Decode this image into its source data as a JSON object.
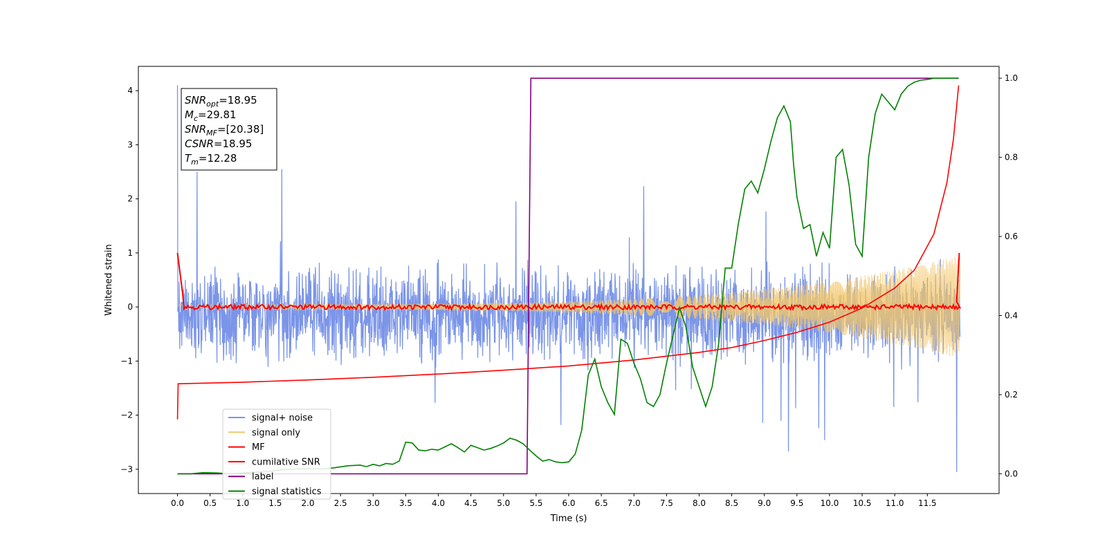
{
  "chart_data": {
    "type": "line",
    "xlabel": "Time (s)",
    "ylabel": "Whitened strain",
    "xlim": [
      -0.6,
      12.6
    ],
    "ylim": [
      -3.45,
      4.45
    ],
    "ylim_right": [
      -0.05,
      1.03
    ],
    "xticks": [
      0.0,
      0.5,
      1.0,
      1.5,
      2.0,
      2.5,
      3.0,
      3.5,
      4.0,
      4.5,
      5.0,
      5.5,
      6.0,
      6.5,
      7.0,
      7.5,
      8.0,
      8.5,
      9.0,
      9.5,
      10.0,
      10.5,
      11.0,
      11.5
    ],
    "xtick_labels": [
      "0.0",
      "0.5",
      "1.0",
      "1.5",
      "2.0",
      "2.5",
      "3.0",
      "3.5",
      "4.0",
      "4.5",
      "5.0",
      "5.5",
      "6.0",
      "6.5",
      "7.0",
      "7.5",
      "8.0",
      "8.5",
      "9.0",
      "9.5",
      "10.0",
      "10.5",
      "11.0",
      "11.5"
    ],
    "yticks": [
      -3,
      -2,
      -1,
      0,
      1,
      2,
      3,
      4
    ],
    "ytick_labels": [
      "−3",
      "−2",
      "−1",
      "0",
      "1",
      "2",
      "3",
      "4"
    ],
    "yticks_right": [
      0.0,
      0.2,
      0.4,
      0.6,
      0.8,
      1.0
    ],
    "ytick_right_labels": [
      "0.0",
      "0.2",
      "0.4",
      "0.6",
      "0.8",
      "1.0"
    ],
    "annotation": [
      {
        "base": "SNR",
        "sub": "opt",
        "value": "=18.95"
      },
      {
        "base": "M",
        "sub": "c",
        "value": "=29.81"
      },
      {
        "base": "SNR",
        "sub": "MF",
        "value": "=[20.38]"
      },
      {
        "base": "CSNR",
        "sub": "",
        "value": "=18.95"
      },
      {
        "base": "T",
        "sub": "m",
        "value": "=12.28"
      }
    ],
    "legend_position": "lower-left",
    "series": [
      {
        "name": "signal+ noise",
        "axis": "left",
        "color": "#7b95e8",
        "duration": 12.0,
        "noise_sd": 0.65,
        "note_peaks": [
          [
            0.0,
            4.1
          ],
          [
            0.3,
            2.5
          ],
          [
            1.6,
            2.55
          ],
          [
            11.95,
            -3.05
          ]
        ]
      },
      {
        "name": "signal only",
        "axis": "left",
        "color": "#f2c76a",
        "duration": 12.0,
        "start_amp": 0.05,
        "end_amp": 0.95
      },
      {
        "name": "MF",
        "axis": "left",
        "color": "#ff0000",
        "duration": 12.0,
        "start": 1.0,
        "level": 0.0,
        "ripple": 0.05,
        "end": 1.0
      },
      {
        "name": "cumilative SNR",
        "axis": "left",
        "color": "#ff0000",
        "x": [
          0.0,
          0.01,
          1.0,
          2.0,
          3.0,
          4.0,
          5.0,
          6.0,
          7.0,
          8.0,
          8.5,
          9.0,
          9.5,
          10.0,
          10.5,
          11.0,
          11.3,
          11.6,
          11.8,
          11.9,
          11.98
        ],
        "y": [
          -2.08,
          -1.42,
          -1.39,
          -1.35,
          -1.3,
          -1.24,
          -1.17,
          -1.09,
          -0.98,
          -0.84,
          -0.75,
          -0.62,
          -0.47,
          -0.28,
          -0.02,
          0.35,
          0.68,
          1.35,
          2.3,
          3.1,
          4.1
        ]
      },
      {
        "name": "label",
        "axis": "right",
        "color": "#800080",
        "x": [
          0.0,
          5.36,
          5.42,
          11.98
        ],
        "y": [
          0.0,
          0.0,
          1.0,
          1.0
        ]
      },
      {
        "name": "signal statistics",
        "axis": "right",
        "color": "#008000",
        "x": [
          0.0,
          0.2,
          0.4,
          0.6,
          0.8,
          1.0,
          1.2,
          1.4,
          1.6,
          1.8,
          2.0,
          2.2,
          2.4,
          2.6,
          2.8,
          2.9,
          3.0,
          3.1,
          3.2,
          3.3,
          3.4,
          3.5,
          3.6,
          3.7,
          3.8,
          3.9,
          4.0,
          4.1,
          4.2,
          4.3,
          4.4,
          4.5,
          4.6,
          4.7,
          4.8,
          4.9,
          5.0,
          5.1,
          5.2,
          5.3,
          5.4,
          5.5,
          5.6,
          5.7,
          5.8,
          5.9,
          6.0,
          6.1,
          6.2,
          6.3,
          6.4,
          6.5,
          6.6,
          6.7,
          6.8,
          6.9,
          7.0,
          7.1,
          7.2,
          7.3,
          7.4,
          7.5,
          7.6,
          7.7,
          7.8,
          7.9,
          8.0,
          8.1,
          8.2,
          8.3,
          8.4,
          8.5,
          8.6,
          8.7,
          8.8,
          8.9,
          9.0,
          9.1,
          9.2,
          9.3,
          9.4,
          9.45,
          9.5,
          9.6,
          9.7,
          9.8,
          9.9,
          10.0,
          10.1,
          10.2,
          10.3,
          10.4,
          10.5,
          10.6,
          10.7,
          10.8,
          10.9,
          11.0,
          11.1,
          11.2,
          11.3,
          11.4,
          11.5,
          11.6,
          11.7,
          11.8,
          11.9,
          11.98
        ],
        "y": [
          0.0,
          0.0,
          0.003,
          0.002,
          0.0,
          0.002,
          0.004,
          0.006,
          0.01,
          0.012,
          0.013,
          0.012,
          0.015,
          0.02,
          0.022,
          0.018,
          0.024,
          0.02,
          0.026,
          0.024,
          0.032,
          0.08,
          0.078,
          0.06,
          0.058,
          0.062,
          0.06,
          0.068,
          0.076,
          0.066,
          0.055,
          0.072,
          0.066,
          0.06,
          0.064,
          0.07,
          0.078,
          0.09,
          0.085,
          0.076,
          0.06,
          0.045,
          0.032,
          0.036,
          0.03,
          0.028,
          0.03,
          0.05,
          0.11,
          0.25,
          0.29,
          0.22,
          0.18,
          0.15,
          0.34,
          0.33,
          0.28,
          0.24,
          0.18,
          0.17,
          0.2,
          0.28,
          0.35,
          0.42,
          0.37,
          0.27,
          0.22,
          0.17,
          0.22,
          0.33,
          0.52,
          0.52,
          0.63,
          0.72,
          0.74,
          0.71,
          0.77,
          0.84,
          0.9,
          0.93,
          0.89,
          0.78,
          0.7,
          0.62,
          0.63,
          0.55,
          0.61,
          0.57,
          0.8,
          0.82,
          0.73,
          0.58,
          0.55,
          0.8,
          0.91,
          0.96,
          0.94,
          0.92,
          0.96,
          0.98,
          0.99,
          0.995,
          0.997,
          1.0,
          1.0,
          1.0,
          1.0,
          1.0
        ]
      }
    ]
  }
}
